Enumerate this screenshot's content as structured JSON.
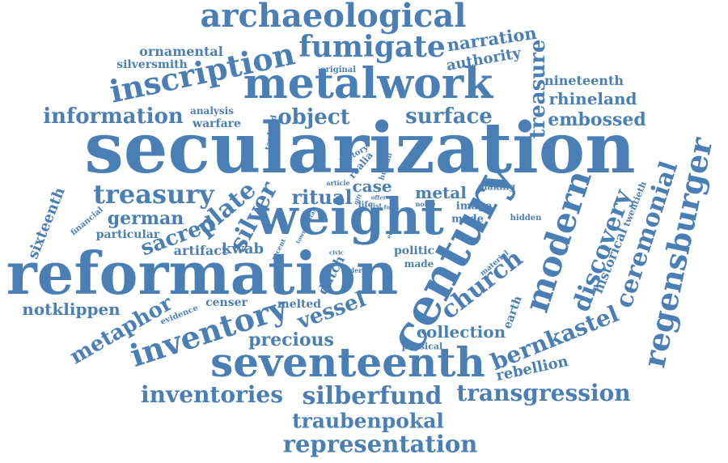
{
  "cloud": {
    "color": "#4a7fb5",
    "words": [
      "secularization",
      "reformation",
      "metalwork",
      "weight",
      "century",
      "seventeenth",
      "archaeological",
      "inscription",
      "fumigate",
      "inventory",
      "treasury",
      "regensburger",
      "modern",
      "ceremonial",
      "discovery",
      "church",
      "inventories",
      "silberfund",
      "transgression",
      "representation",
      "traubenpokal",
      "bernkastel",
      "information",
      "object",
      "surface",
      "embossed",
      "rhineland",
      "treasure",
      "nineteenth",
      "narration",
      "authority",
      "ornamental",
      "silversmith",
      "plate",
      "silver",
      "sacred",
      "german",
      "ritual",
      "metal",
      "case",
      "kwab",
      "artifact",
      "metaphor",
      "notklippen",
      "vessel",
      "precious",
      "collection",
      "rebellion",
      "historical",
      "twentieth",
      "sixteenth",
      "censer",
      "melted",
      "particular",
      "dutch",
      "politic",
      "earth",
      "warfare",
      "analysis",
      "original",
      "tankard",
      "history",
      "realia",
      "human",
      "making",
      "image",
      "mode",
      "hidden",
      "made",
      "material",
      "physical",
      "evidence",
      "financial",
      "recent",
      "town",
      "civic",
      "elder",
      "ewer",
      "noble",
      "form",
      "list",
      "offer",
      "article",
      "staff",
      "life",
      "gift"
    ]
  }
}
